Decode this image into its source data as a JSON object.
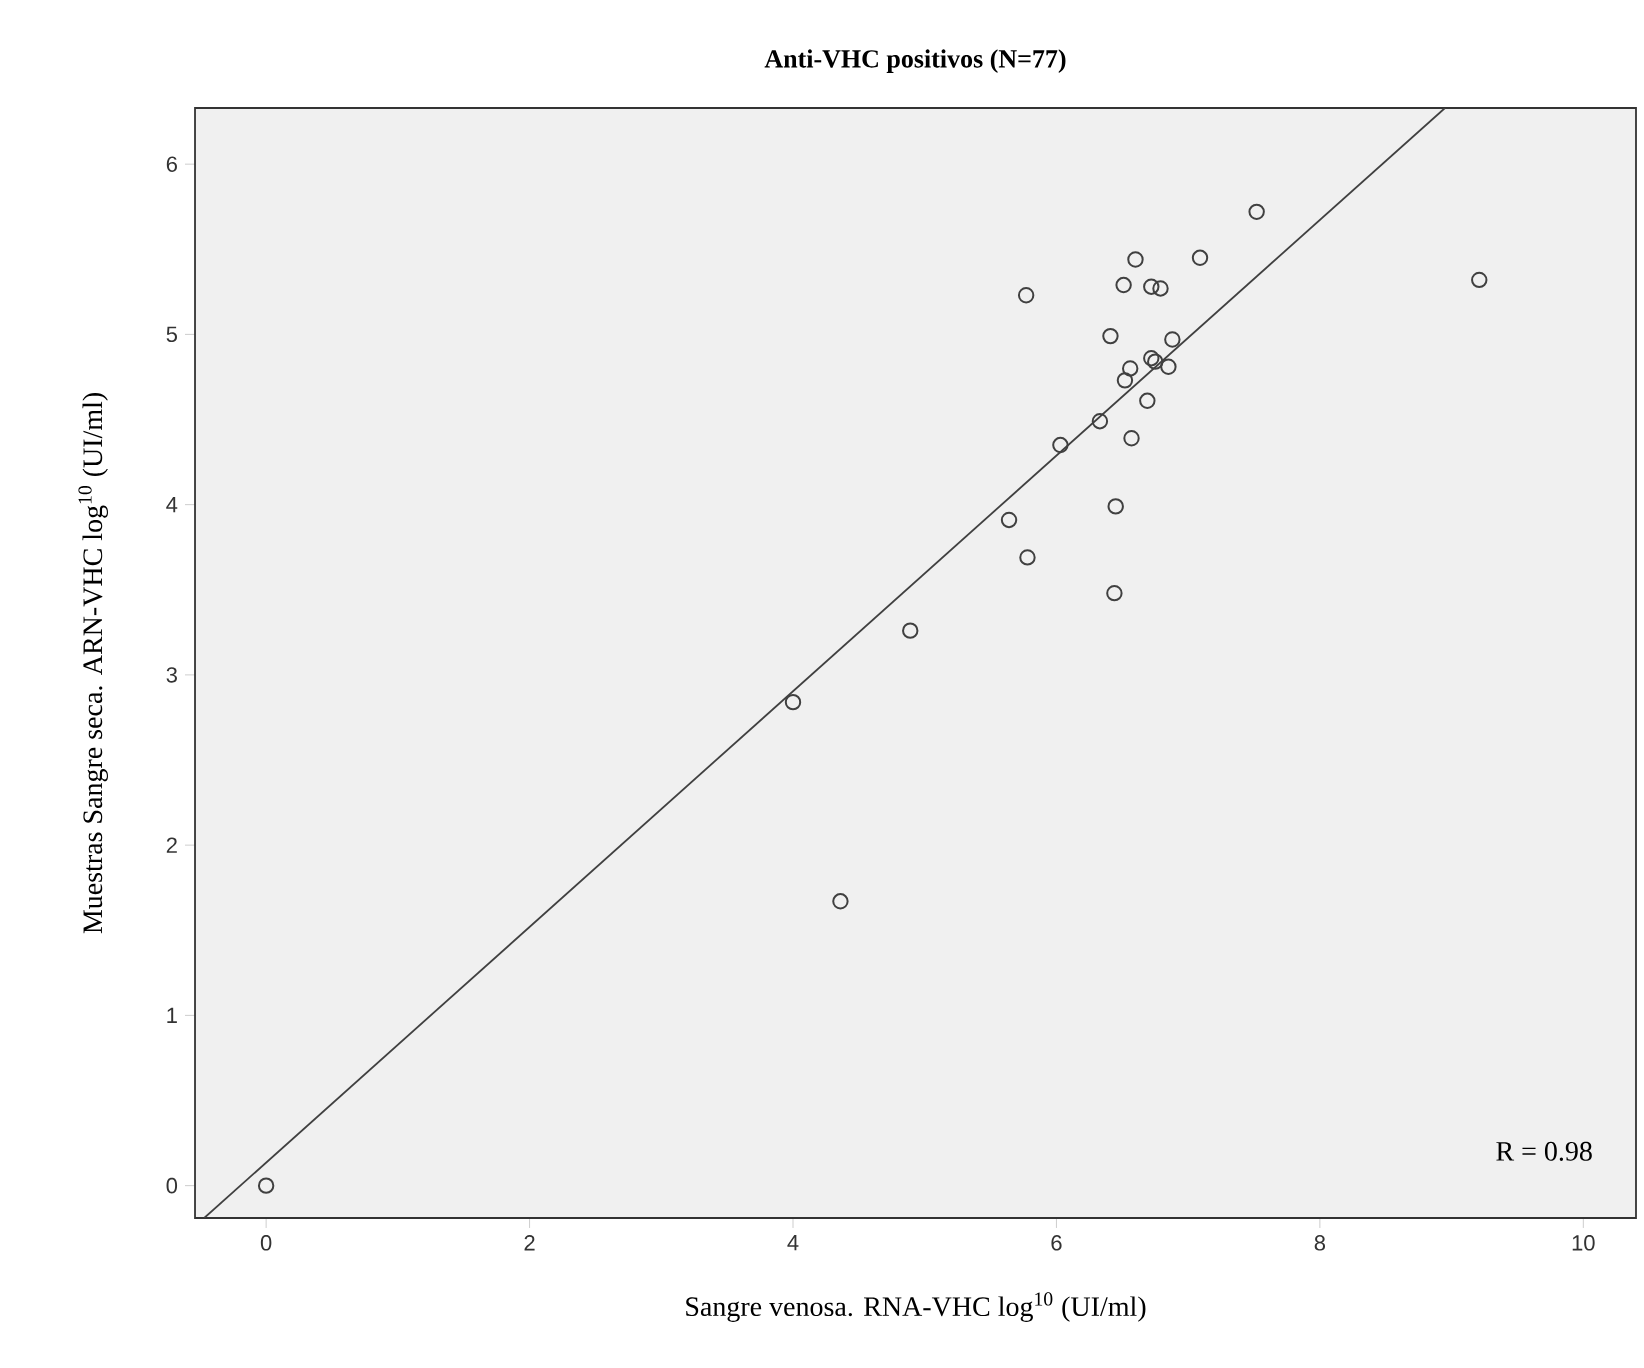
{
  "chart_data": {
    "type": "scatter",
    "title": "**Anti-VHC positivos  (N=77)**",
    "xlabel": "Sangre venosa. RNA-VHC log$^{10}$ (UI/ml)",
    "ylabel": "Muestras Sangre seca. ARN-VHC log$^{10}$ (UI/ml)",
    "xlim": [
      -0.54,
      10.4
    ],
    "ylim": [
      -0.19,
      6.33
    ],
    "xticks": [
      0,
      2,
      4,
      6,
      8,
      10
    ],
    "yticks": [
      0,
      1,
      2,
      3,
      4,
      5,
      6
    ],
    "grid": false,
    "marker": "circle",
    "annotations": [
      "R = 0.98"
    ],
    "series": [
      {
        "color": "#404040",
        "x": [
          0,
          7.52,
          6.6,
          7.09,
          5.77,
          6.51,
          6.72,
          6.79,
          9.21,
          6.41,
          6.88,
          6.56,
          6.72,
          6.75,
          6.85,
          6.52,
          6.69,
          6.33,
          6.03,
          6.57,
          5.64,
          6.45,
          5.78,
          6.44,
          4.89,
          4.0,
          4.36
        ],
        "values": [
          0,
          5.72,
          5.44,
          5.45,
          5.23,
          5.29,
          5.28,
          5.27,
          5.32,
          4.99,
          4.97,
          4.8,
          4.86,
          4.84,
          4.81,
          4.73,
          4.61,
          4.49,
          4.35,
          4.39,
          3.91,
          3.99,
          3.69,
          3.48,
          3.26,
          2.84,
          1.67
        ]
      },
      {
        "type": "line",
        "marker": "none",
        "color": "#404040",
        "x": [
          -0.47,
          8.95
        ],
        "values": [
          -0.19,
          6.33
        ]
      }
    ]
  }
}
